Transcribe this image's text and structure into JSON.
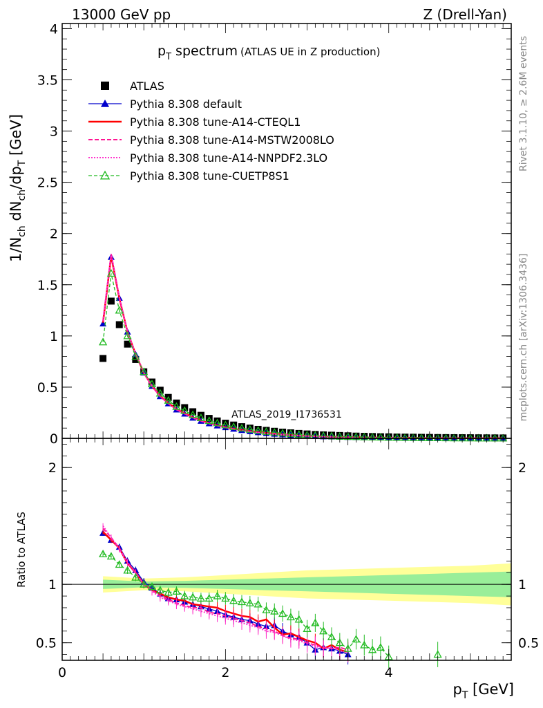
{
  "header": {
    "left": "13000 GeV pp",
    "right": "Z (Drell-Yan)"
  },
  "side_labels": {
    "rivet": "Rivet 3.1.10, ≥ 2.6M events",
    "mcplots": "mcplots.cern.ch [arXiv:1306.3436]"
  },
  "colors": {
    "atlas": "#000000",
    "default": "#0000cc",
    "cteql1": "#ff0000",
    "mstw": "#ff1493",
    "nnpdf": "#ff33cc",
    "cuetp8s1": "#22bb22",
    "band_inner": "#99ee99",
    "band_outer": "#ffff99"
  },
  "chart_data": [
    {
      "type": "scatter",
      "title_main": "p",
      "title_sub": "T",
      "title_word": " spectrum",
      "title_note": "(ATLAS UE in Z production)",
      "analysis_id": "ATLAS_2019_I1736531",
      "ylabel": {
        "p1": "1/N",
        "s1": "ch",
        "p2": " dN",
        "s2": "ch",
        "p3": "/dp",
        "s3": "T",
        "p4": " [GeV]"
      },
      "xlim": [
        0,
        5.5
      ],
      "ylim": [
        0,
        4.05
      ],
      "y_ticks": [
        "0",
        "0.5",
        "1",
        "1.5",
        "2",
        "2.5",
        "3",
        "3.5",
        "4"
      ],
      "legend_position": "top-left",
      "x": [
        0.5,
        0.6,
        0.7,
        0.8,
        0.9,
        1.0,
        1.1,
        1.2,
        1.3,
        1.4,
        1.5,
        1.6,
        1.7,
        1.8,
        1.9,
        2.0,
        2.1,
        2.2,
        2.3,
        2.4,
        2.5,
        2.6,
        2.7,
        2.8,
        2.9,
        3.0,
        3.1,
        3.2,
        3.3,
        3.4,
        3.5,
        3.6,
        3.7,
        3.8,
        3.9,
        4.0,
        4.1,
        4.2,
        4.3,
        4.4,
        4.5,
        4.6,
        4.7,
        4.8,
        4.9,
        5.0,
        5.1,
        5.2,
        5.3,
        5.4
      ],
      "series": [
        {
          "name": "ATLAS",
          "values": [
            0.78,
            1.34,
            1.11,
            0.92,
            0.77,
            0.65,
            0.55,
            0.47,
            0.4,
            0.345,
            0.3,
            0.26,
            0.225,
            0.195,
            0.17,
            0.148,
            0.13,
            0.114,
            0.1,
            0.088,
            0.078,
            0.069,
            0.061,
            0.054,
            0.048,
            0.043,
            0.038,
            0.034,
            0.031,
            0.028,
            0.025,
            0.022,
            0.02,
            0.018,
            0.016,
            0.015,
            0.013,
            0.012,
            0.011,
            0.01,
            0.009,
            0.008,
            0.0075,
            0.007,
            0.0065,
            0.006,
            0.0055,
            0.005,
            0.0046,
            0.0042
          ]
        },
        {
          "name": "Pythia 8.308 default",
          "values": [
            1.12,
            1.77,
            1.37,
            1.04,
            0.82,
            0.64,
            0.51,
            0.41,
            0.34,
            0.28,
            0.24,
            0.2,
            0.17,
            0.145,
            0.124,
            0.107,
            0.092,
            0.079,
            0.068,
            0.058,
            0.05,
            0.043,
            0.037,
            0.032,
            0.028,
            0.024,
            0.021,
            0.018,
            0.016,
            0.014,
            0.012,
            0.01,
            0.009,
            0.008,
            0.007,
            0.006,
            0.005,
            0.0045,
            0.004,
            0.0035,
            0.003,
            0.0027,
            0.0024,
            0.0021,
            0.0019,
            0.0017,
            0.0015,
            0.0013,
            0.0012,
            0.001
          ]
        },
        {
          "name": "Pythia 8.308 tune-A14-CTEQL1",
          "values": [
            1.13,
            1.78,
            1.37,
            1.04,
            0.82,
            0.64,
            0.51,
            0.415,
            0.345,
            0.285,
            0.245,
            0.205,
            0.174,
            0.148,
            0.127,
            0.109,
            0.094,
            0.081,
            0.07,
            0.06,
            0.052,
            0.045,
            0.038,
            0.033,
            0.028,
            0.024,
            0.021,
            0.018,
            0.016,
            0.014,
            0.012,
            0.01,
            0.009,
            0.008,
            0.007,
            0.006,
            0.005,
            0.0045,
            0.004,
            0.0035,
            0.003,
            0.0027,
            0.0024,
            0.0021,
            0.0019,
            0.0017,
            0.0015,
            0.0013,
            0.0012,
            0.001
          ]
        },
        {
          "name": "Pythia 8.308 tune-A14-MSTW2008LO",
          "values": [
            1.14,
            1.8,
            1.38,
            1.04,
            0.82,
            0.64,
            0.51,
            0.41,
            0.34,
            0.28,
            0.24,
            0.2,
            0.17,
            0.145,
            0.124,
            0.106,
            0.091,
            0.078,
            0.067,
            0.057,
            0.049,
            0.042,
            0.036,
            0.031,
            0.027,
            0.023,
            0.02,
            0.017,
            0.015,
            0.013,
            0.011,
            0.0095,
            0.0085,
            0.0075,
            0.0065,
            0.0058,
            0.005,
            0.0045,
            0.004,
            0.0035,
            0.003,
            0.0027,
            0.0024,
            0.0021,
            0.0019,
            0.0017,
            0.0015,
            0.0013,
            0.0012,
            0.001
          ]
        },
        {
          "name": "Pythia 8.308 tune-A14-NNPDF2.3LO",
          "values": [
            1.15,
            1.8,
            1.38,
            1.04,
            0.82,
            0.64,
            0.51,
            0.41,
            0.34,
            0.28,
            0.24,
            0.2,
            0.168,
            0.143,
            0.122,
            0.105,
            0.09,
            0.077,
            0.066,
            0.056,
            0.048,
            0.041,
            0.035,
            0.03,
            0.026,
            0.022,
            0.019,
            0.017,
            0.015,
            0.013,
            0.011,
            0.0095,
            0.0085,
            0.0075,
            0.0065,
            0.0058,
            0.005,
            0.0045,
            0.004,
            0.0035,
            0.003,
            0.0027,
            0.0024,
            0.0021,
            0.0019,
            0.0017,
            0.0015,
            0.0013,
            0.0012,
            0.001
          ]
        },
        {
          "name": "Pythia 8.308 tune-CUETP8S1",
          "values": [
            0.94,
            1.61,
            1.25,
            1.0,
            0.8,
            0.65,
            0.53,
            0.44,
            0.37,
            0.31,
            0.27,
            0.23,
            0.2,
            0.172,
            0.15,
            0.13,
            0.113,
            0.099,
            0.087,
            0.076,
            0.066,
            0.058,
            0.05,
            0.044,
            0.038,
            0.033,
            0.029,
            0.025,
            0.022,
            0.019,
            0.017,
            0.015,
            0.013,
            0.011,
            0.01,
            0.0085,
            0.0075,
            0.0065,
            0.0058,
            0.0051,
            0.0045,
            0.004,
            0.0035,
            0.0031,
            0.0027,
            0.0024,
            0.0021,
            0.0019,
            0.0017,
            0.0015
          ]
        }
      ]
    },
    {
      "type": "scatter",
      "ylabel": "Ratio to ATLAS",
      "xlabel_main": "p",
      "xlabel_sub": "T",
      "xlabel_unit": " [GeV]",
      "xlim": [
        0,
        5.5
      ],
      "ylim": [
        0.35,
        2.25
      ],
      "x_ticks": [
        "0",
        "2",
        "4"
      ],
      "y_ticks": [
        "0.5",
        "1",
        "2"
      ],
      "reference_line": 1,
      "band_x": [
        0.5,
        1.0,
        1.5,
        2.0,
        2.5,
        3.0,
        3.5,
        4.0,
        4.5,
        5.0,
        5.5
      ],
      "band_inner": [
        0.04,
        0.025,
        0.03,
        0.04,
        0.05,
        0.06,
        0.07,
        0.08,
        0.09,
        0.1,
        0.11
      ],
      "band_outer": [
        0.07,
        0.05,
        0.06,
        0.08,
        0.1,
        0.12,
        0.13,
        0.14,
        0.15,
        0.16,
        0.18
      ],
      "x": [
        0.5,
        0.6,
        0.7,
        0.8,
        0.9,
        1.0,
        1.1,
        1.2,
        1.3,
        1.4,
        1.5,
        1.6,
        1.7,
        1.8,
        1.9,
        2.0,
        2.1,
        2.2,
        2.3,
        2.4,
        2.5,
        2.6,
        2.7,
        2.8,
        2.9,
        3.0,
        3.1,
        3.2,
        3.3,
        3.4,
        3.5,
        3.6,
        3.7,
        3.8,
        3.9,
        4.0,
        4.1,
        4.2,
        4.3,
        4.4,
        4.5,
        4.6
      ],
      "series": [
        {
          "name": "Pythia 8.308 default",
          "values": [
            1.44,
            1.38,
            1.32,
            1.2,
            1.12,
            1.02,
            0.97,
            0.92,
            0.88,
            0.87,
            0.85,
            0.83,
            0.81,
            0.79,
            0.77,
            0.74,
            0.72,
            0.7,
            0.69,
            0.66,
            0.64,
            0.65,
            0.6,
            0.57,
            0.55,
            0.5,
            0.44,
            0.46,
            0.45,
            0.43,
            0.4,
            null,
            null,
            null,
            null,
            null,
            null,
            null,
            null,
            null,
            null,
            null
          ]
        },
        {
          "name": "Pythia 8.308 tune-A14-CTEQL1",
          "values": [
            1.45,
            1.38,
            1.31,
            1.18,
            1.1,
            1.0,
            0.95,
            0.92,
            0.89,
            0.87,
            0.86,
            0.83,
            0.82,
            0.81,
            0.8,
            0.77,
            0.75,
            0.73,
            0.72,
            0.68,
            0.7,
            0.63,
            0.57,
            0.58,
            0.55,
            0.52,
            0.5,
            0.45,
            0.48,
            0.44,
            0.42,
            null,
            null,
            null,
            null,
            null,
            null,
            null,
            null,
            null,
            null,
            null
          ]
        },
        {
          "name": "Pythia 8.308 tune-A14-MSTW2008LO",
          "values": [
            1.48,
            1.4,
            1.31,
            1.19,
            1.1,
            1.0,
            0.95,
            0.9,
            0.87,
            0.84,
            0.82,
            0.8,
            0.8,
            0.76,
            0.75,
            0.73,
            0.71,
            0.69,
            0.67,
            0.64,
            0.62,
            0.6,
            0.56,
            0.54,
            0.53,
            0.5,
            0.48,
            0.46,
            0.45,
            0.46,
            0.44,
            null,
            null,
            null,
            null,
            null,
            null,
            null,
            null,
            null,
            null,
            null
          ]
        },
        {
          "name": "Pythia 8.308 tune-A14-NNPDF2.3LO",
          "values": [
            1.5,
            1.4,
            1.3,
            1.18,
            1.09,
            1.0,
            0.94,
            0.89,
            0.86,
            0.83,
            0.81,
            0.79,
            0.77,
            0.75,
            0.73,
            0.71,
            0.69,
            0.67,
            0.65,
            0.63,
            0.6,
            0.59,
            0.56,
            0.53,
            0.52,
            0.49,
            0.47,
            0.45,
            0.46,
            0.43,
            0.42,
            null,
            null,
            null,
            null,
            null,
            null,
            null,
            null,
            null,
            null,
            null
          ]
        },
        {
          "name": "Pythia 8.308 tune-CUETP8S1",
          "values": [
            1.26,
            1.24,
            1.17,
            1.12,
            1.06,
            1.0,
            0.98,
            0.95,
            0.93,
            0.94,
            0.9,
            0.89,
            0.88,
            0.88,
            0.9,
            0.88,
            0.86,
            0.85,
            0.84,
            0.83,
            0.78,
            0.77,
            0.75,
            0.72,
            0.7,
            0.62,
            0.67,
            0.6,
            0.55,
            0.5,
            0.45,
            0.53,
            0.48,
            0.44,
            0.46,
            0.38,
            null,
            null,
            null,
            null,
            null,
            0.4
          ]
        }
      ]
    }
  ]
}
